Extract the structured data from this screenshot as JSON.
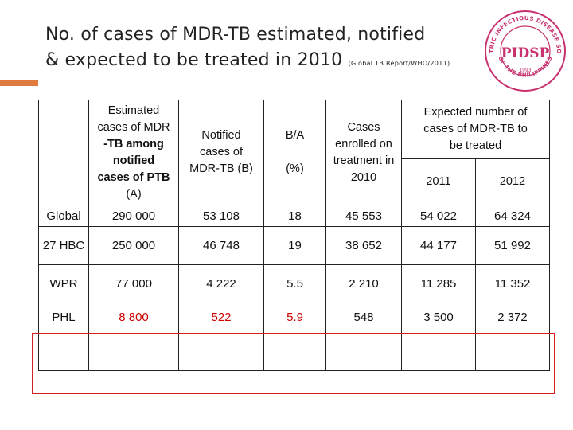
{
  "slide": {
    "title_line1": "No. of cases of MDR-TB estimated, notified",
    "title_line2": "& expected to be treated in 2010",
    "source": "(Global TB Report/WHO/2011)"
  },
  "logo": {
    "text_arc": "PEDIATRIC INFECTIOUS DISEASE SOCIETY OF THE PHILIPPINES",
    "initials": "PIDSP",
    "year": "1993",
    "colors": {
      "ring": "#c8326e",
      "text": "#c8326e"
    }
  },
  "table": {
    "headers": {
      "estimated": [
        "Estimated",
        "cases of MDR",
        "-TB among",
        "notified",
        "cases of PTB",
        "(A)"
      ],
      "notified": [
        "Notified",
        "cases of",
        "MDR-TB (B)"
      ],
      "ba": "B/A",
      "ba_unit": "(%)",
      "enrolled": [
        "Cases",
        "enrolled on",
        "treatment in",
        "2010"
      ],
      "expected": [
        "Expected number of",
        "cases of MDR-TB to",
        "be treated"
      ],
      "year_2011": "2011",
      "year_2012": "2012"
    },
    "rows": [
      {
        "label": "Global",
        "estimated": "290 000",
        "notified": "53 108",
        "ba": "18",
        "enrolled": "45 553",
        "y2011": "54 022",
        "y2012": "64 324"
      },
      {
        "label": "27 HBC",
        "estimated": "250 000",
        "notified": "46 748",
        "ba": "19",
        "enrolled": "38 652",
        "y2011": "44 177",
        "y2012": "51 992"
      },
      {
        "label": "WPR",
        "estimated": "77 000",
        "notified": "4 222",
        "ba": "5.5",
        "enrolled": "2 210",
        "y2011": "11 285",
        "y2012": "11 352"
      },
      {
        "label": "PHL",
        "estimated": "8 800",
        "notified": "522",
        "ba": "5.9",
        "enrolled": "548",
        "y2011": "3 500",
        "y2012": "2 372"
      }
    ],
    "highlight_color": "#cc0000"
  }
}
